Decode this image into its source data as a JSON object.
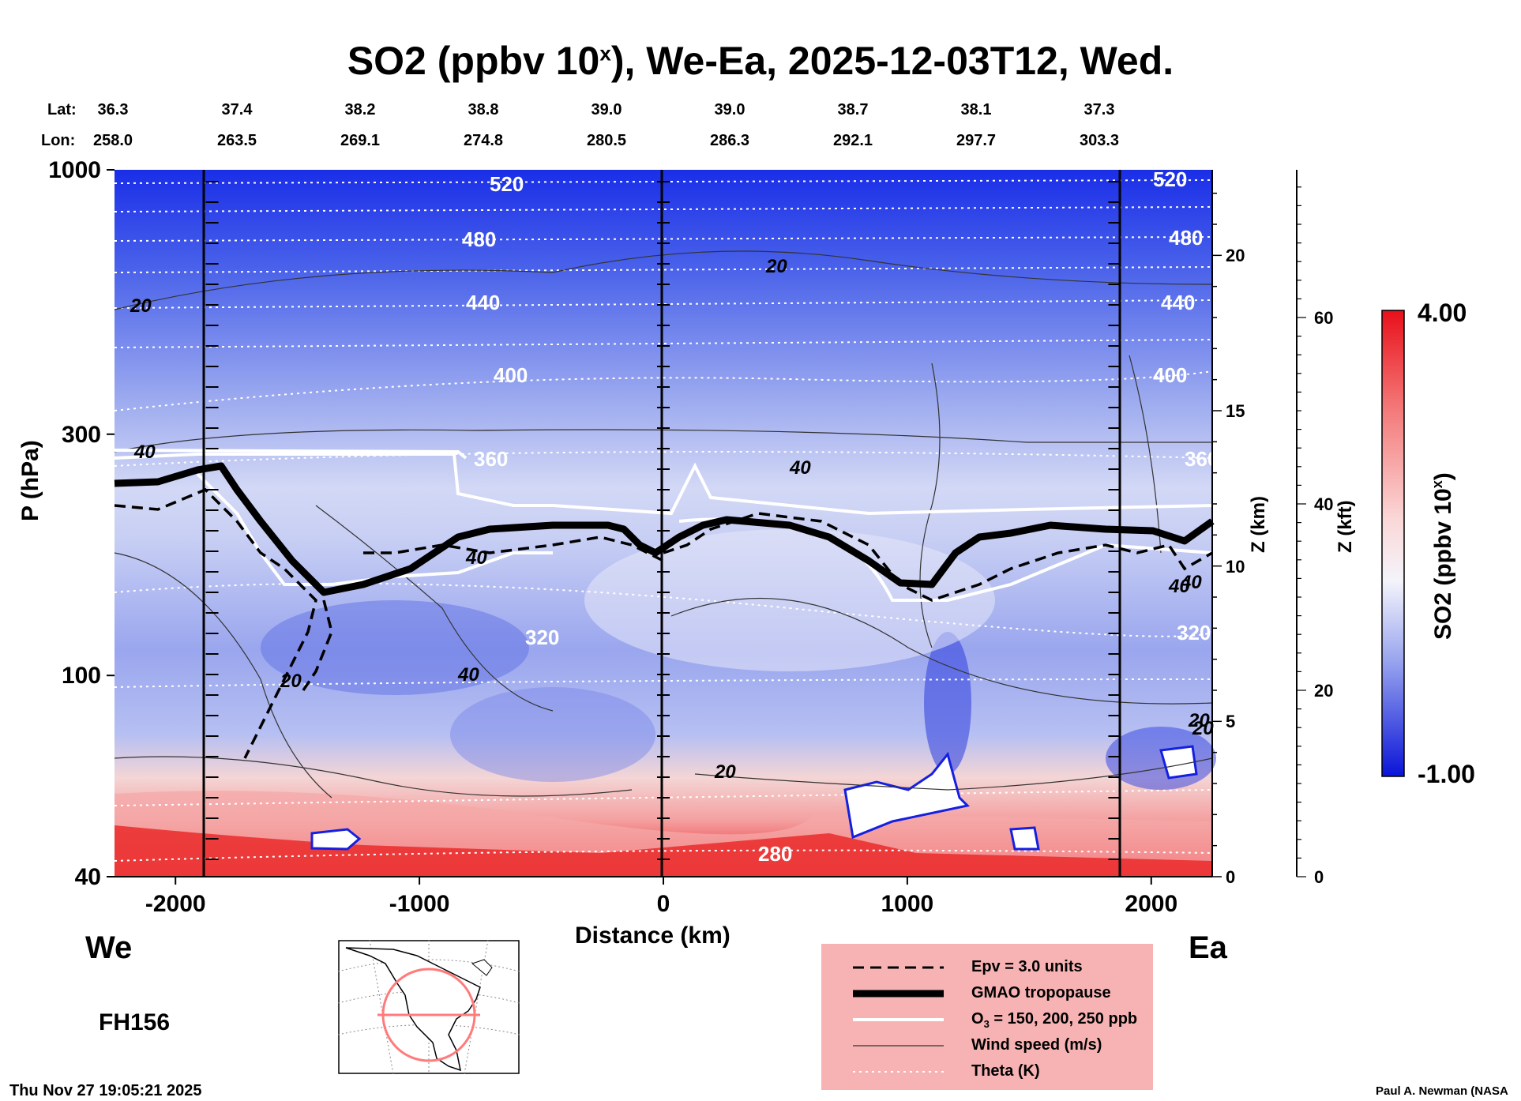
{
  "title": {
    "main": "SO2 (ppbv 10",
    "sup": "x",
    "rest": "), We-Ea, 2025-12-03T12, Wed."
  },
  "lat": {
    "label": "Lat:",
    "values": [
      "36.3",
      "37.4",
      "38.2",
      "38.8",
      "39.0",
      "39.0",
      "38.7",
      "38.1",
      "37.3"
    ]
  },
  "lon": {
    "label": "Lon:",
    "values": [
      "258.0",
      "263.5",
      "269.1",
      "274.8",
      "280.5",
      "286.3",
      "292.1",
      "297.7",
      "303.3"
    ]
  },
  "left_axis": {
    "label": "P (hPa)",
    "ticks": [
      "40",
      "100",
      "300",
      "1000"
    ]
  },
  "z_km_axis": {
    "label": "Z (km)",
    "ticks": [
      "20",
      "15",
      "10",
      "5",
      "0"
    ]
  },
  "z_kft_axis": {
    "label": "Z (kft)",
    "ticks": [
      "60",
      "40",
      "20",
      "0"
    ]
  },
  "x_axis": {
    "label": "Distance (km)",
    "ticks": [
      "-2000",
      "-1000",
      "0",
      "1000",
      "2000"
    ]
  },
  "direction": {
    "west": "We",
    "east": "Ea"
  },
  "forecast_hour": "FH156",
  "timestamp": "Thu Nov 27 19:05:21 2025",
  "credit": "Paul A. Newman (NASA",
  "colorbar": {
    "label": "SO2 (ppbv 10",
    "label_sup": "x",
    "label_end": ")",
    "max": "4.00",
    "min": "-1.00"
  },
  "contour_labels": {
    "theta": [
      "520",
      "480",
      "440",
      "400",
      "360",
      "320",
      "280",
      "520",
      "480",
      "440",
      "400",
      "360",
      "320"
    ],
    "wind": [
      "20",
      "20",
      "40",
      "40",
      "40",
      "20",
      "40",
      "20",
      "40",
      "20",
      "40",
      "20"
    ]
  },
  "legend": {
    "epv": "Epv = 3.0 units",
    "tropopause": "GMAO tropopause",
    "o3": "O",
    "o3_sub": "3",
    "o3_rest": " = 150, 200, 250 ppb",
    "wind": "Wind speed (m/s)",
    "theta": "Theta (K)"
  },
  "colors": {
    "positive": "#e8101a",
    "negative": "#1420e0",
    "neutral": "#f4f4fb",
    "legend_bg": "#f7b3b3"
  },
  "chart_data": {
    "type": "heatmap",
    "title": "SO2 (ppbv 10^x), We-Ea, 2025-12-03T12, Wed.",
    "xlabel": "Distance (km)",
    "ylabel": "P (hPa)",
    "xlim": [
      -2250,
      2250
    ],
    "ylim": [
      1000,
      40
    ],
    "colorbar_range": [
      -1.0,
      4.0
    ],
    "x_ticks": [
      -2000,
      -1000,
      0,
      1000,
      2000
    ],
    "y_ticks": [
      40,
      100,
      300,
      1000
    ],
    "lat": [
      36.3,
      37.4,
      38.2,
      38.8,
      39.0,
      39.0,
      38.7,
      38.1,
      37.3
    ],
    "lon": [
      258.0,
      263.5,
      269.1,
      274.8,
      280.5,
      286.3,
      292.1,
      297.7,
      303.3
    ],
    "theta_levels_K": [
      280,
      320,
      360,
      400,
      440,
      480,
      520
    ],
    "wind_levels_ms": [
      20,
      40
    ],
    "vertical_markers_km": [
      -1850,
      0,
      1850
    ]
  }
}
